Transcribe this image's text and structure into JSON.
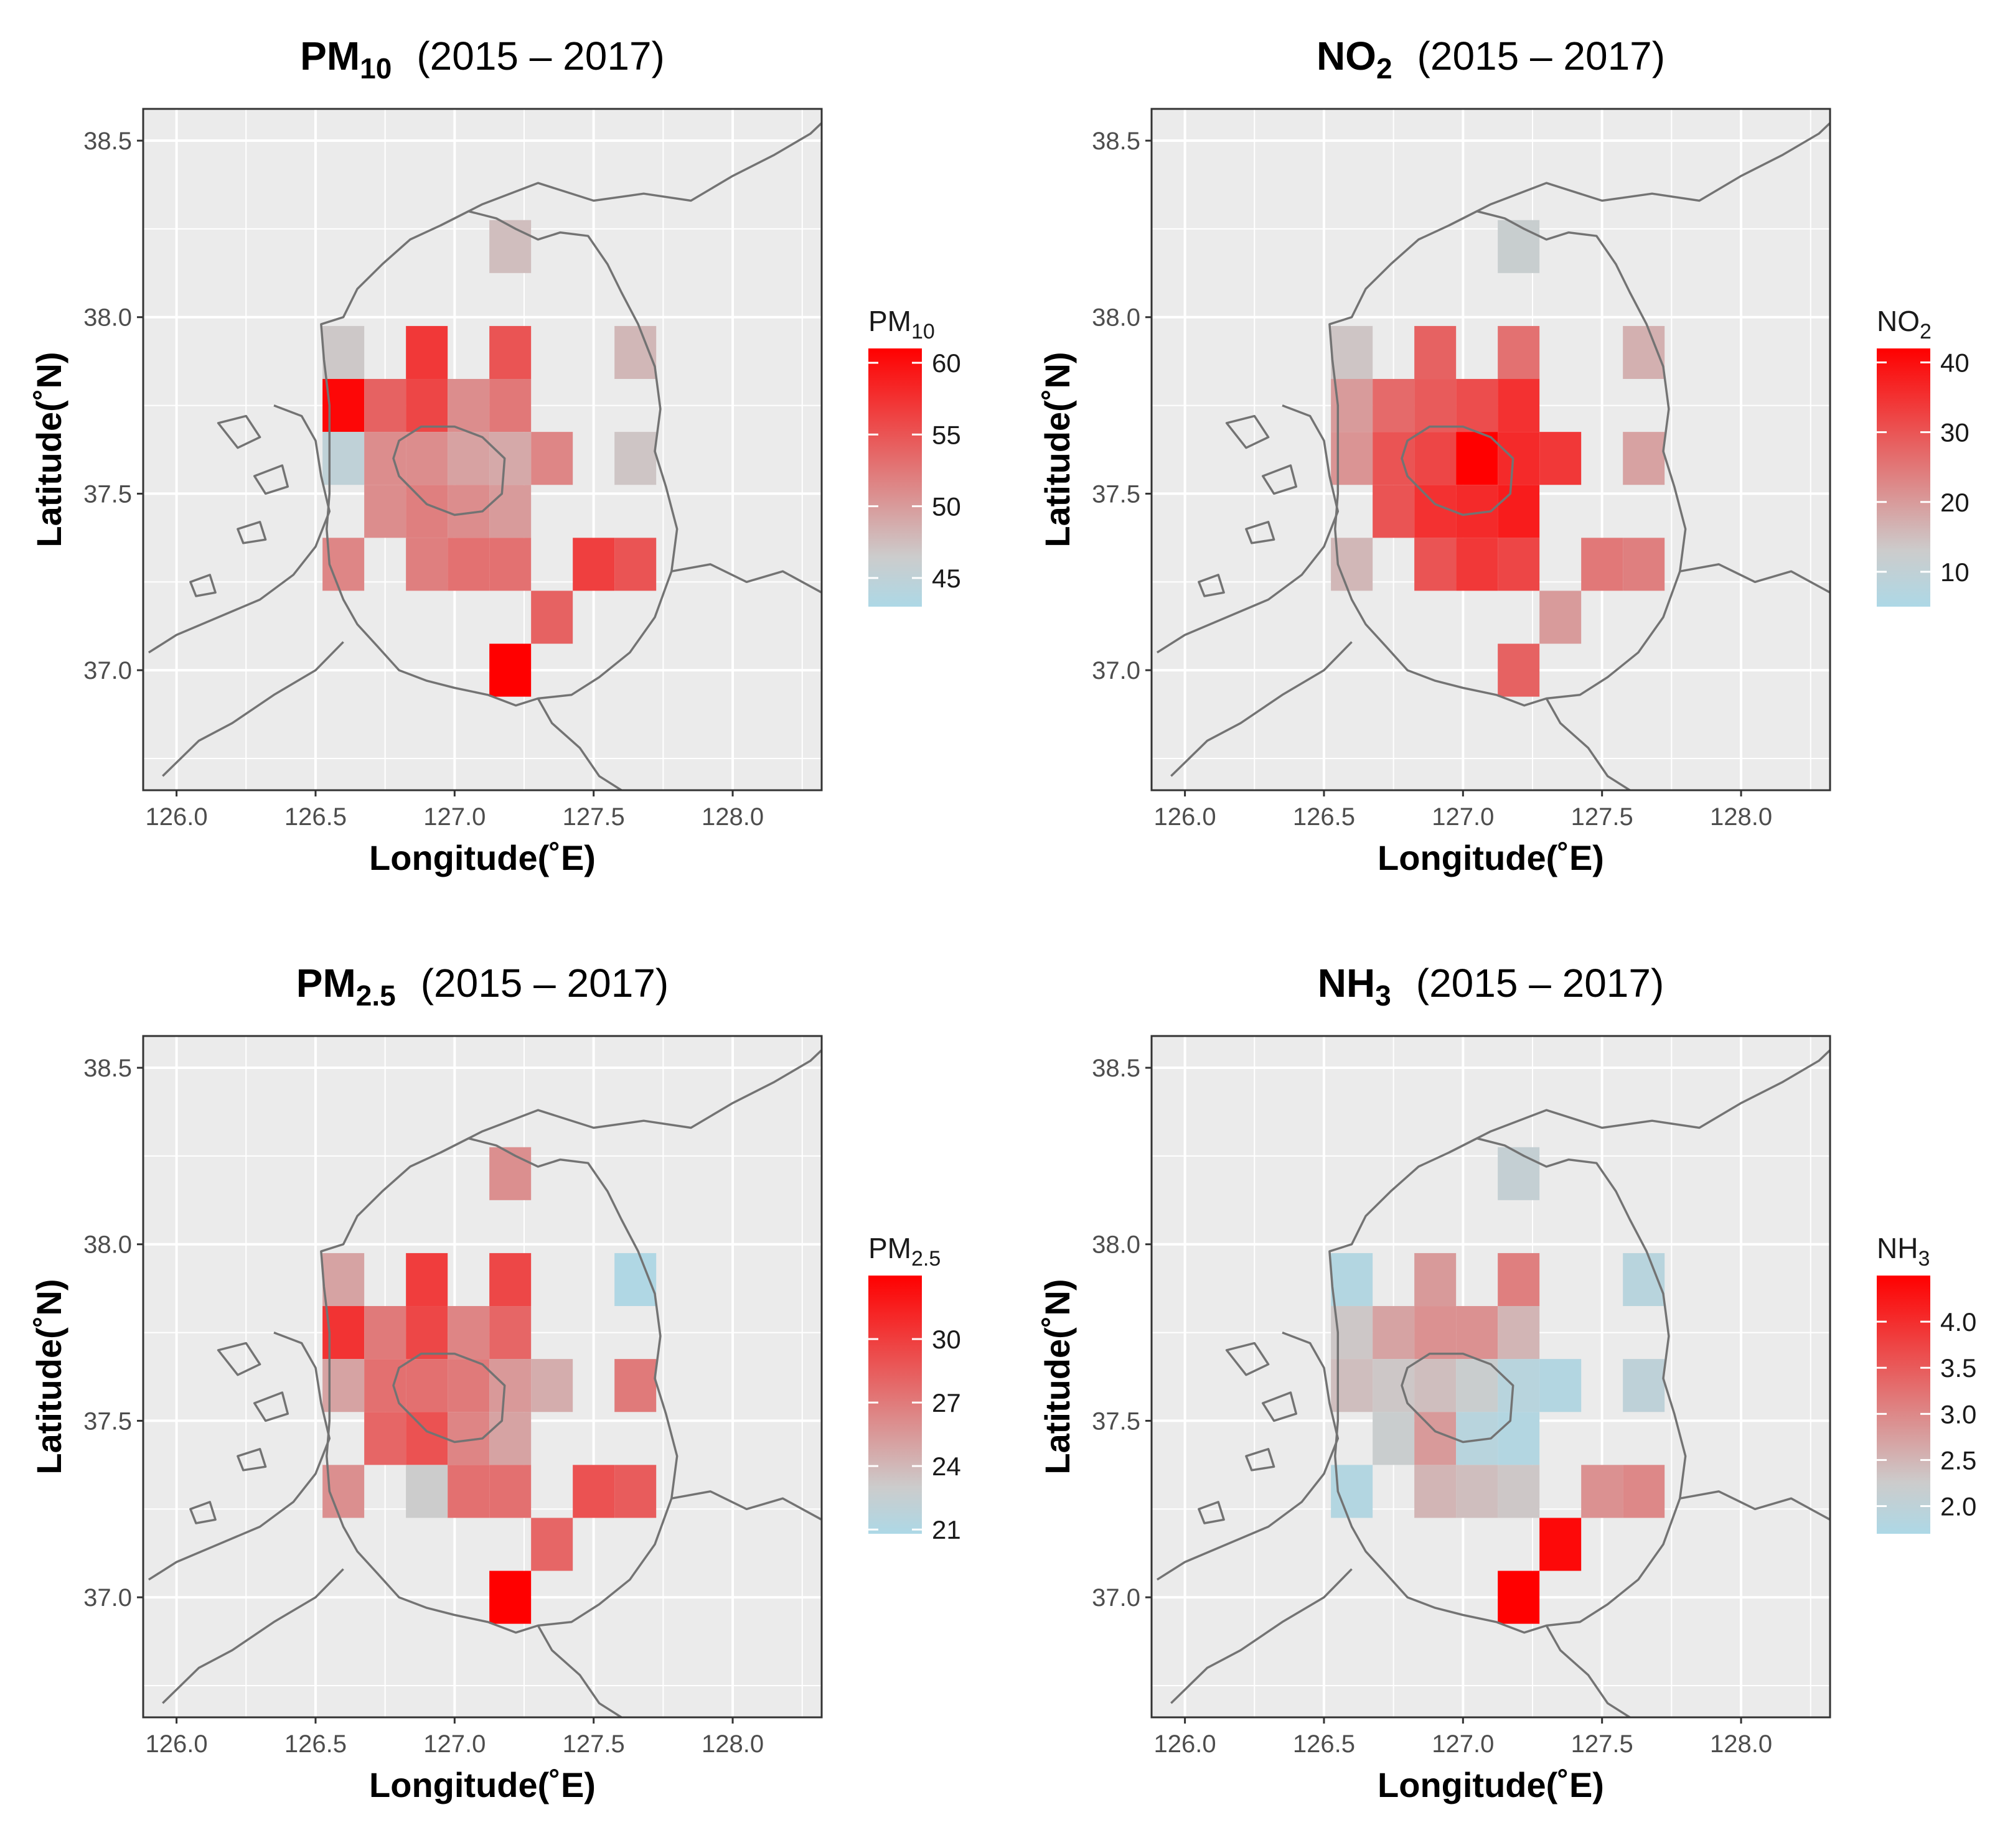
{
  "figure": {
    "colors": {
      "low": "#add8e6",
      "mid": "#cccccc",
      "high": "#ff0000",
      "panel_bg": "#ebebeb",
      "grid": "#ffffff",
      "border": "#333333",
      "boundary": "#737373"
    }
  },
  "chart_data": [
    {
      "type": "heatmap",
      "title": {
        "main": "PM",
        "sub": "10",
        "period": "(2015 – 2017)"
      },
      "xlabel": "Longitude(˚E)",
      "ylabel": "Latitude(˚N)",
      "xlim": [
        125.88,
        128.32
      ],
      "ylim": [
        36.66,
        38.59
      ],
      "xticks": [
        "126.0",
        "126.5",
        "127.0",
        "127.5",
        "128.0"
      ],
      "xtick_values": [
        126.0,
        126.5,
        127.0,
        127.5,
        128.0
      ],
      "yticks": [
        "37.0",
        "37.5",
        "38.0",
        "38.5"
      ],
      "ytick_values": [
        37.0,
        37.5,
        38.0,
        38.5
      ],
      "legend": {
        "title_main": "PM",
        "title_sub": "10",
        "ticks": [
          "45",
          "50",
          "55",
          "60"
        ],
        "tick_values": [
          45,
          50,
          55,
          60
        ],
        "min": 43,
        "max": 61,
        "mid": 46.5
      },
      "cell_size": 0.15,
      "cells": [
        [
          127.2,
          38.2,
          47.5
        ],
        [
          126.6,
          37.9,
          46.8
        ],
        [
          126.9,
          37.9,
          57
        ],
        [
          127.2,
          37.9,
          55
        ],
        [
          127.65,
          37.9,
          48
        ],
        [
          126.6,
          37.75,
          60.5
        ],
        [
          126.75,
          37.75,
          54
        ],
        [
          126.9,
          37.75,
          56
        ],
        [
          127.05,
          37.75,
          51
        ],
        [
          127.2,
          37.75,
          52.5
        ],
        [
          126.6,
          37.6,
          45
        ],
        [
          126.75,
          37.6,
          51
        ],
        [
          126.9,
          37.6,
          51
        ],
        [
          127.05,
          37.6,
          49.5
        ],
        [
          127.2,
          37.6,
          49
        ],
        [
          127.35,
          37.6,
          51.5
        ],
        [
          127.65,
          37.6,
          47
        ],
        [
          126.75,
          37.45,
          51
        ],
        [
          126.9,
          37.45,
          52
        ],
        [
          127.05,
          37.45,
          51
        ],
        [
          127.2,
          37.45,
          50
        ],
        [
          126.6,
          37.3,
          51.5
        ],
        [
          126.9,
          37.3,
          52
        ],
        [
          127.05,
          37.3,
          53
        ],
        [
          127.2,
          37.3,
          53
        ],
        [
          127.5,
          37.3,
          56.5
        ],
        [
          127.65,
          37.3,
          55
        ],
        [
          127.35,
          37.15,
          54
        ],
        [
          127.2,
          37.0,
          61
        ]
      ]
    },
    {
      "type": "heatmap",
      "title": {
        "main": "NO",
        "sub": "2",
        "period": "(2015 – 2017)"
      },
      "xlabel": "Longitude(˚E)",
      "ylabel": "Latitude(˚N)",
      "xlim": [
        125.88,
        128.32
      ],
      "ylim": [
        36.66,
        38.59
      ],
      "xticks": [
        "126.0",
        "126.5",
        "127.0",
        "127.5",
        "128.0"
      ],
      "xtick_values": [
        126.0,
        126.5,
        127.0,
        127.5,
        128.0
      ],
      "yticks": [
        "37.0",
        "37.5",
        "38.0",
        "38.5"
      ],
      "ytick_values": [
        37.0,
        37.5,
        38.0,
        38.5
      ],
      "legend": {
        "title_main": "NO",
        "title_sub": "2",
        "ticks": [
          "10",
          "20",
          "30",
          "40"
        ],
        "tick_values": [
          10,
          20,
          30,
          40
        ],
        "min": 5,
        "max": 42,
        "mid": 13
      },
      "cell_size": 0.15,
      "cells": [
        [
          127.2,
          38.2,
          12
        ],
        [
          126.6,
          37.9,
          14
        ],
        [
          126.9,
          37.9,
          28
        ],
        [
          127.2,
          37.9,
          26
        ],
        [
          127.65,
          37.9,
          17
        ],
        [
          126.6,
          37.75,
          20
        ],
        [
          126.75,
          37.75,
          27
        ],
        [
          126.9,
          37.75,
          29
        ],
        [
          127.05,
          37.75,
          31
        ],
        [
          127.2,
          37.75,
          35
        ],
        [
          126.6,
          37.6,
          21
        ],
        [
          126.75,
          37.6,
          30
        ],
        [
          126.9,
          37.6,
          32
        ],
        [
          127.05,
          37.6,
          42
        ],
        [
          127.2,
          37.6,
          36
        ],
        [
          127.35,
          37.6,
          34
        ],
        [
          127.65,
          37.6,
          19
        ],
        [
          126.75,
          37.45,
          30
        ],
        [
          126.9,
          37.45,
          35
        ],
        [
          127.05,
          37.45,
          36
        ],
        [
          127.2,
          37.45,
          38
        ],
        [
          126.6,
          37.3,
          16
        ],
        [
          126.9,
          37.3,
          30
        ],
        [
          127.05,
          37.3,
          34
        ],
        [
          127.2,
          37.3,
          32
        ],
        [
          127.5,
          37.3,
          25
        ],
        [
          127.65,
          37.3,
          24
        ],
        [
          127.35,
          37.15,
          20
        ],
        [
          127.2,
          37.0,
          28
        ]
      ]
    },
    {
      "type": "heatmap",
      "title": {
        "main": "PM",
        "sub": "2.5",
        "period": "(2015 – 2017)"
      },
      "xlabel": "Longitude(˚E)",
      "ylabel": "Latitude(˚N)",
      "xlim": [
        125.88,
        128.32
      ],
      "ylim": [
        36.66,
        38.59
      ],
      "xticks": [
        "126.0",
        "126.5",
        "127.0",
        "127.5",
        "128.0"
      ],
      "xtick_values": [
        126.0,
        126.5,
        127.0,
        127.5,
        128.0
      ],
      "yticks": [
        "37.0",
        "37.5",
        "38.0",
        "38.5"
      ],
      "ytick_values": [
        37.0,
        37.5,
        38.0,
        38.5
      ],
      "legend": {
        "title_main": "PM",
        "title_sub": "2.5",
        "ticks": [
          "21",
          "24",
          "27",
          "30"
        ],
        "tick_values": [
          21,
          24,
          27,
          30
        ],
        "min": 20.8,
        "max": 33,
        "mid": 23
      },
      "cell_size": 0.15,
      "cells": [
        [
          127.2,
          38.2,
          26
        ],
        [
          126.6,
          37.9,
          25
        ],
        [
          126.9,
          37.9,
          30
        ],
        [
          127.2,
          37.9,
          29.5
        ],
        [
          127.65,
          37.9,
          21
        ],
        [
          126.6,
          37.75,
          30.5
        ],
        [
          126.75,
          37.75,
          27
        ],
        [
          126.9,
          37.75,
          29.5
        ],
        [
          127.05,
          37.75,
          26.5
        ],
        [
          127.2,
          37.75,
          28
        ],
        [
          126.6,
          37.6,
          25
        ],
        [
          126.75,
          37.6,
          27.5
        ],
        [
          126.9,
          37.6,
          27.5
        ],
        [
          127.05,
          37.6,
          27
        ],
        [
          127.2,
          37.6,
          25.5
        ],
        [
          127.35,
          37.6,
          24.5
        ],
        [
          127.65,
          37.6,
          27
        ],
        [
          126.75,
          37.45,
          28
        ],
        [
          126.9,
          37.45,
          29
        ],
        [
          127.05,
          37.45,
          26.5
        ],
        [
          127.2,
          37.45,
          25
        ],
        [
          126.6,
          37.3,
          26
        ],
        [
          126.9,
          37.3,
          23
        ],
        [
          127.05,
          37.3,
          27.5
        ],
        [
          127.2,
          37.3,
          27.5
        ],
        [
          127.5,
          37.3,
          29
        ],
        [
          127.65,
          37.3,
          28.5
        ],
        [
          127.35,
          37.15,
          28
        ],
        [
          127.2,
          37.0,
          33
        ]
      ]
    },
    {
      "type": "heatmap",
      "title": {
        "main": "NH",
        "sub": "3",
        "period": "(2015 – 2017)"
      },
      "xlabel": "Longitude(˚E)",
      "ylabel": "Latitude(˚N)",
      "xlim": [
        125.88,
        128.32
      ],
      "ylim": [
        36.66,
        38.59
      ],
      "xticks": [
        "126.0",
        "126.5",
        "127.0",
        "127.5",
        "128.0"
      ],
      "xtick_values": [
        126.0,
        126.5,
        127.0,
        127.5,
        128.0
      ],
      "yticks": [
        "37.0",
        "37.5",
        "38.0",
        "38.5"
      ],
      "ytick_values": [
        37.0,
        37.5,
        38.0,
        38.5
      ],
      "legend": {
        "title_main": "NH",
        "title_sub": "3",
        "ticks": [
          "2.0",
          "2.5",
          "3.0",
          "3.5",
          "4.0"
        ],
        "tick_values": [
          2.0,
          2.5,
          3.0,
          3.5,
          4.0
        ],
        "min": 1.7,
        "max": 4.5,
        "mid": 2.25
      },
      "cell_size": 0.15,
      "cells": [
        [
          127.2,
          38.2,
          2.1
        ],
        [
          126.6,
          37.9,
          1.8
        ],
        [
          126.9,
          37.9,
          2.8
        ],
        [
          127.2,
          37.9,
          3.1
        ],
        [
          127.65,
          37.9,
          1.9
        ],
        [
          126.6,
          37.75,
          2.3
        ],
        [
          126.75,
          37.75,
          2.7
        ],
        [
          126.9,
          37.75,
          2.9
        ],
        [
          127.05,
          37.75,
          2.9
        ],
        [
          127.2,
          37.75,
          2.5
        ],
        [
          126.6,
          37.6,
          2.4
        ],
        [
          126.75,
          37.6,
          2.3
        ],
        [
          126.9,
          37.6,
          2.4
        ],
        [
          127.05,
          37.6,
          2.2
        ],
        [
          127.2,
          37.6,
          1.9
        ],
        [
          127.35,
          37.6,
          1.8
        ],
        [
          127.65,
          37.6,
          2.0
        ],
        [
          126.75,
          37.45,
          2.2
        ],
        [
          126.9,
          37.45,
          2.8
        ],
        [
          127.05,
          37.45,
          1.9
        ],
        [
          127.2,
          37.45,
          1.8
        ],
        [
          126.6,
          37.3,
          1.8
        ],
        [
          126.9,
          37.3,
          2.5
        ],
        [
          127.05,
          37.3,
          2.4
        ],
        [
          127.2,
          37.3,
          2.3
        ],
        [
          127.5,
          37.3,
          2.9
        ],
        [
          127.65,
          37.3,
          3.0
        ],
        [
          127.35,
          37.15,
          4.4
        ],
        [
          127.2,
          37.0,
          4.5
        ]
      ]
    }
  ]
}
